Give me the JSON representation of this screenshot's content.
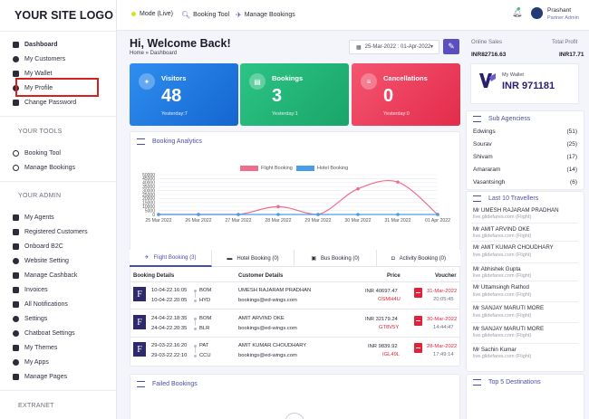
{
  "sidebar": {
    "logo": "YOUR SITE LOGO",
    "main_items": [
      {
        "label": "Dashboard",
        "icon": "dashboard-icon"
      },
      {
        "label": "My Customers",
        "icon": "user-icon"
      },
      {
        "label": "My Wallet",
        "icon": "wallet-icon"
      },
      {
        "label": "My Profile",
        "icon": "profile-icon"
      },
      {
        "label": "Change Password",
        "icon": "lock-icon"
      }
    ],
    "tools_heading": "YOUR TOOLS",
    "tools_items": [
      {
        "label": "Booking Tool",
        "icon": "search-icon"
      },
      {
        "label": "Manage Bookings",
        "icon": "search-icon"
      }
    ],
    "admin_heading": "YOUR ADMIN",
    "admin_items": [
      {
        "label": "My Agents",
        "icon": "agents-icon"
      },
      {
        "label": "Registered Customers",
        "icon": "customers-icon"
      },
      {
        "label": "Onboard B2C",
        "icon": "onboard-icon"
      },
      {
        "label": "Website Setting",
        "icon": "globe-icon"
      },
      {
        "label": "Manage Cashback",
        "icon": "cashback-icon"
      },
      {
        "label": "Invoices",
        "icon": "invoice-icon"
      },
      {
        "label": "All Notifications",
        "icon": "bell-icon"
      },
      {
        "label": "Settings",
        "icon": "gear-icon"
      },
      {
        "label": "Chatboat Settings",
        "icon": "chat-icon"
      },
      {
        "label": "My Themes",
        "icon": "theme-icon"
      },
      {
        "label": "My Apps",
        "icon": "apps-icon"
      },
      {
        "label": "Manage Pages",
        "icon": "pages-icon"
      }
    ],
    "extranet_heading": "EXTRANET"
  },
  "topbar": {
    "mode": "Mode (Live)",
    "booking_tool": "Booking Tool",
    "manage_bookings": "Manage Bookings",
    "user_name": "Prashant",
    "user_role": "Partner Admin",
    "live_color": "#d6e21a"
  },
  "header": {
    "welcome": "Hi, Welcome Back!",
    "breadcrumb": "Home » Dashboard",
    "date_range": "25-Mar-2022 : 01-Apr-2022"
  },
  "stats": [
    {
      "label": "Visitors",
      "value": "48",
      "sub": "Yesterday:7",
      "icon": "visitors-icon",
      "color": "#1e7fe0"
    },
    {
      "label": "Bookings",
      "value": "3",
      "sub": "Yesterday:1",
      "icon": "ticket-icon",
      "color": "#23b97a"
    },
    {
      "label": "Cancellations",
      "value": "0",
      "sub": "Yesterday:0",
      "icon": "cancel-list-icon",
      "color": "#ee3e5d"
    }
  ],
  "analytics": {
    "title": "Booking Analytics",
    "failed_title": "Failed Bookings"
  },
  "chart_data": {
    "type": "line",
    "categories": [
      "25 Mar 2022",
      "26 Mar 2022",
      "27 Mar 2022",
      "28 Mar 2022",
      "29 Mar 2022",
      "30 Mar 2022",
      "31 Mar 2022",
      "01 Apr 2022"
    ],
    "series": [
      {
        "name": "Flight Booking",
        "values": [
          0,
          0,
          0,
          9839.92,
          0,
          32179.24,
          40697.47,
          0
        ],
        "color": "#f06c8c"
      },
      {
        "name": "Hotel Booking",
        "values": [
          0,
          0,
          0,
          0,
          0,
          0,
          0,
          0
        ],
        "color": "#4a9de8"
      }
    ],
    "yticks": [
      0,
      5000,
      10000,
      15000,
      20000,
      25000,
      30000,
      35000,
      40000,
      45000,
      50000
    ],
    "ylim": [
      0,
      50000
    ],
    "legend": "top-center",
    "grid": true
  },
  "tabs": [
    {
      "label": "Flight Booking (3)",
      "icon": "plane-icon",
      "active": true
    },
    {
      "label": "Hotel Booking (0)",
      "icon": "bed-icon",
      "active": false
    },
    {
      "label": "Bus Booking (0)",
      "icon": "bus-icon",
      "active": false
    },
    {
      "label": "Activity Booking (0)",
      "icon": "camera-icon",
      "active": false
    }
  ],
  "table": {
    "headers": [
      "Booking Details",
      "Customer Details",
      "Price",
      "Voucher"
    ],
    "rows": [
      {
        "dep_time": "10-04-22.16:05",
        "dep_code": "BOM",
        "arr_time": "10-04-22.20:05",
        "arr_code": "HYD",
        "customer": "UMESH RAJARAM PRADHAN",
        "email": "bookings@ed-wings.com",
        "price": "INR 40697.47",
        "pnr": "OSMH4U",
        "v_date": "31-Mar-2022",
        "v_time": "20:05:45"
      },
      {
        "dep_time": "24-04-22.18:35",
        "dep_code": "BOM",
        "arr_time": "24-04-22.20:35",
        "arr_code": "BLR",
        "customer": "AMIT ARVIND OKE",
        "email": "bookings@ed-wings.com",
        "price": "INR 32179.24",
        "pnr": "GT8V5Y",
        "v_date": "30-Mar-2022",
        "v_time": "14:44:47"
      },
      {
        "dep_time": "29-03-22.16:20",
        "dep_code": "PAT",
        "arr_time": "29-03-22.22:10",
        "arr_code": "CCU",
        "customer": "AMIT KUMAR CHOUDHARY",
        "email": "bookings@ed-wings.com",
        "price": "INR 9839.92",
        "pnr": "IGL49L",
        "v_date": "28-Mar-2022",
        "v_time": "17:49:14"
      }
    ]
  },
  "right": {
    "online_sales_label": "Online Sales",
    "online_sales_value": "INR82716.63",
    "total_profit_label": "Total Profit",
    "total_profit_value": "INR17.71",
    "wallet_label": "My Wallet",
    "wallet_value": "INR 971181",
    "agencies_title": "Sub Agenciess",
    "agencies": [
      {
        "name": "Edwings",
        "count": "(51)"
      },
      {
        "name": "Sourav",
        "count": "(25)"
      },
      {
        "name": "Shivam",
        "count": "(17)"
      },
      {
        "name": "Amararam",
        "count": "(14)"
      },
      {
        "name": "Vasantsingh",
        "count": "(6)"
      }
    ],
    "travellers_title": "Last 10 Travellers",
    "travellers": [
      {
        "name": "Mr UMESH RAJARAM PRADHAN",
        "sub": "live.glidefares.com (Flight)"
      },
      {
        "name": "Mr AMIT ARVIND OKE",
        "sub": "live.glidefares.com (Flight)"
      },
      {
        "name": "Mr AMIT KUMAR CHOUDHARY",
        "sub": "live.glidefares.com (Flight)"
      },
      {
        "name": "Mr Abhishek Gupta",
        "sub": "live.glidefares.com (Flight)"
      },
      {
        "name": "Mr Uttamsingh Rathod",
        "sub": "live.glidefares.com (Flight)"
      },
      {
        "name": "Mr SANJAY MARUTI MORE",
        "sub": "live.glidefares.com (Flight)"
      },
      {
        "name": "Mr SANJAY MARUTI MORE",
        "sub": "live.glidefares.com (Flight)"
      },
      {
        "name": "Mr Sachin Kumar",
        "sub": "live.glidefares.com (Flight)"
      }
    ],
    "destinations_title": "Top 5 Destinations"
  }
}
